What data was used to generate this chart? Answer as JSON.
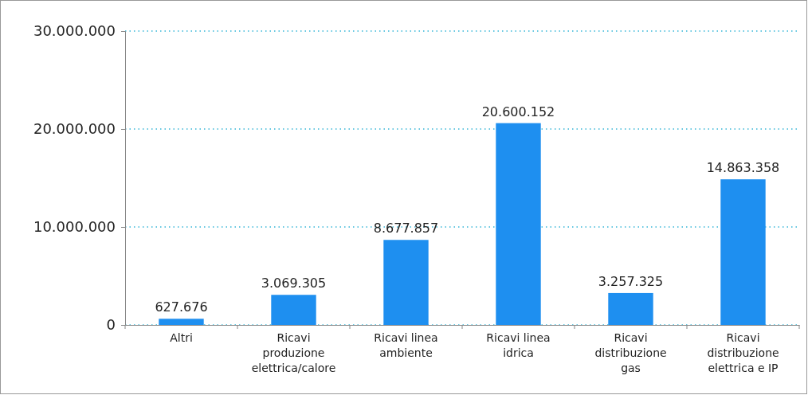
{
  "chart_data": {
    "type": "bar",
    "categories": [
      "Altri",
      "Ricavi produzione elettrica/calore",
      "Ricavi linea ambiente",
      "Ricavi linea idrica",
      "Ricavi distribuzione gas",
      "Ricavi distribuzione elettrica e IP"
    ],
    "values": [
      627676,
      3069305,
      8677857,
      20600152,
      3257325,
      14863358
    ],
    "color": "#1e8ff0",
    "ylim": [
      0,
      30000000
    ],
    "yticks": [
      {
        "value": 0,
        "label": "0"
      },
      {
        "value": 10000000,
        "label": "10.000.000"
      },
      {
        "value": 20000000,
        "label": "20.000.000"
      },
      {
        "value": 30000000,
        "label": "30.000.000"
      }
    ],
    "value_labels": [
      "627.676",
      "3.069.305",
      "8.677.857",
      "20.600.152",
      "3.257.325",
      "14.863.358"
    ],
    "grid": "y"
  }
}
